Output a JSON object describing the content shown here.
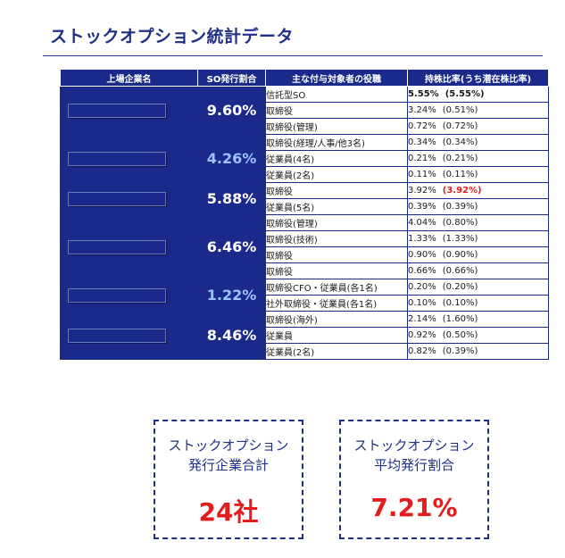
{
  "page": {
    "title": "ストックオプション統計データ"
  },
  "table": {
    "headers": {
      "company": "上場企業名",
      "ratio": "SO発行割合",
      "role": "主な付与対象者の役職",
      "holding": "持株比率(うち潜在株比率)"
    },
    "groups": [
      {
        "ratio": "9.60%",
        "ratio_color": "#ffffff",
        "rows": [
          {
            "role": "信託型SO",
            "holding": "5.55%",
            "potential": "(5.55%)",
            "emphasis": true
          },
          {
            "role": "取締役",
            "holding": "3.24%",
            "potential": "(0.51%)"
          },
          {
            "role": "取締役(管理)",
            "holding": "0.72%",
            "potential": "(0.72%)"
          }
        ]
      },
      {
        "ratio": "4.26%",
        "ratio_color": "#9dc3ff",
        "rows": [
          {
            "role": "取締役(経理/人事/他3名)",
            "holding": "0.34%",
            "potential": "(0.34%)"
          },
          {
            "role": "従業員(4名)",
            "holding": "0.21%",
            "potential": "(0.21%)"
          },
          {
            "role": "従業員(2名)",
            "holding": "0.11%",
            "potential": "(0.11%)"
          }
        ]
      },
      {
        "ratio": "5.88%",
        "ratio_color": "#ffffff",
        "rows": [
          {
            "role": "取締役",
            "holding": "3.92%",
            "potential": "(3.92%)",
            "potential_red": true
          },
          {
            "role": "従業員(5名)",
            "holding": "0.39%",
            "potential": "(0.39%)"
          }
        ]
      },
      {
        "ratio": "6.46%",
        "ratio_color": "#ffffff",
        "rows": [
          {
            "role": "取締役(管理)",
            "holding": "4.04%",
            "potential": "(0.80%)"
          },
          {
            "role": "取締役(技術)",
            "holding": "1.33%",
            "potential": "(1.33%)"
          },
          {
            "role": "取締役",
            "holding": "0.90%",
            "potential": "(0.90%)"
          },
          {
            "role": "取締役",
            "holding": "0.66%",
            "potential": "(0.66%)"
          }
        ]
      },
      {
        "ratio": "1.22%",
        "ratio_color": "#9dc3ff",
        "rows": [
          {
            "role": "取締役CFO・従業員(各1名)",
            "holding": "0.20%",
            "potential": "(0.20%)"
          },
          {
            "role": "社外取締役・従業員(各1名)",
            "holding": "0.10%",
            "potential": "(0.10%)"
          }
        ]
      },
      {
        "ratio": "8.46%",
        "ratio_color": "#ffffff",
        "rows": [
          {
            "role": "取締役(海外)",
            "holding": "2.14%",
            "potential": "(1.60%)"
          },
          {
            "role": "従業員",
            "holding": "0.92%",
            "potential": "(0.50%)"
          },
          {
            "role": "従業員(2名)",
            "holding": "0.82%",
            "potential": "(0.39%)"
          }
        ]
      }
    ]
  },
  "summary": {
    "total": {
      "label_line1": "ストックオプション",
      "label_line2": "発行企業合計",
      "value": "24社"
    },
    "average": {
      "label_line1": "ストックオプション",
      "label_line2": "平均発行割合",
      "value": "7.21%"
    }
  }
}
